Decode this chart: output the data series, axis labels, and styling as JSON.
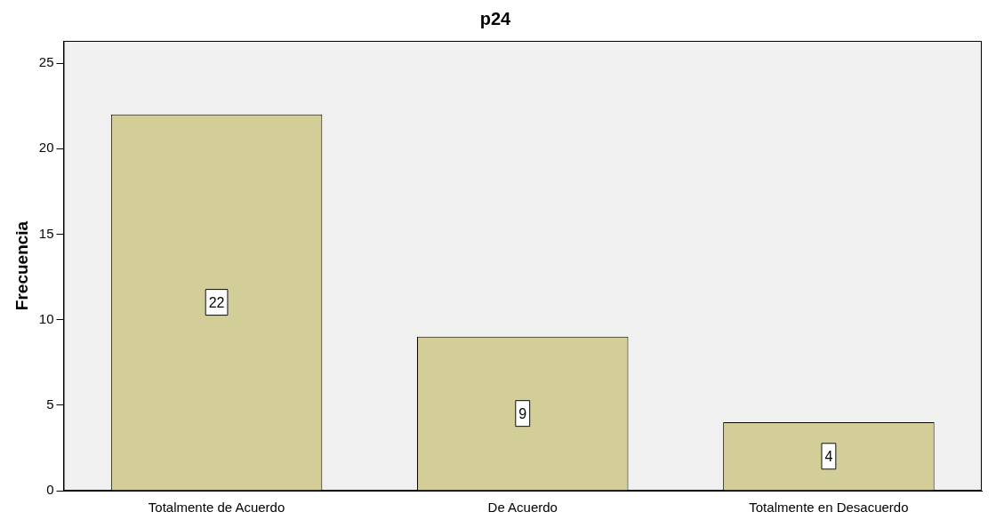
{
  "chart_data": {
    "type": "bar",
    "title": "p24",
    "ylabel": "Frecuencia",
    "categories": [
      "Totalmente de Acuerdo",
      "De Acuerdo",
      "Totalmente en Desacuerdo"
    ],
    "values": [
      22,
      9,
      4
    ],
    "color": "#d3ce97",
    "ylim": [
      0,
      26.3
    ],
    "yticks": [
      0,
      5,
      10,
      15,
      20,
      25
    ],
    "grid": false,
    "legend": false,
    "data_labels": true
  }
}
